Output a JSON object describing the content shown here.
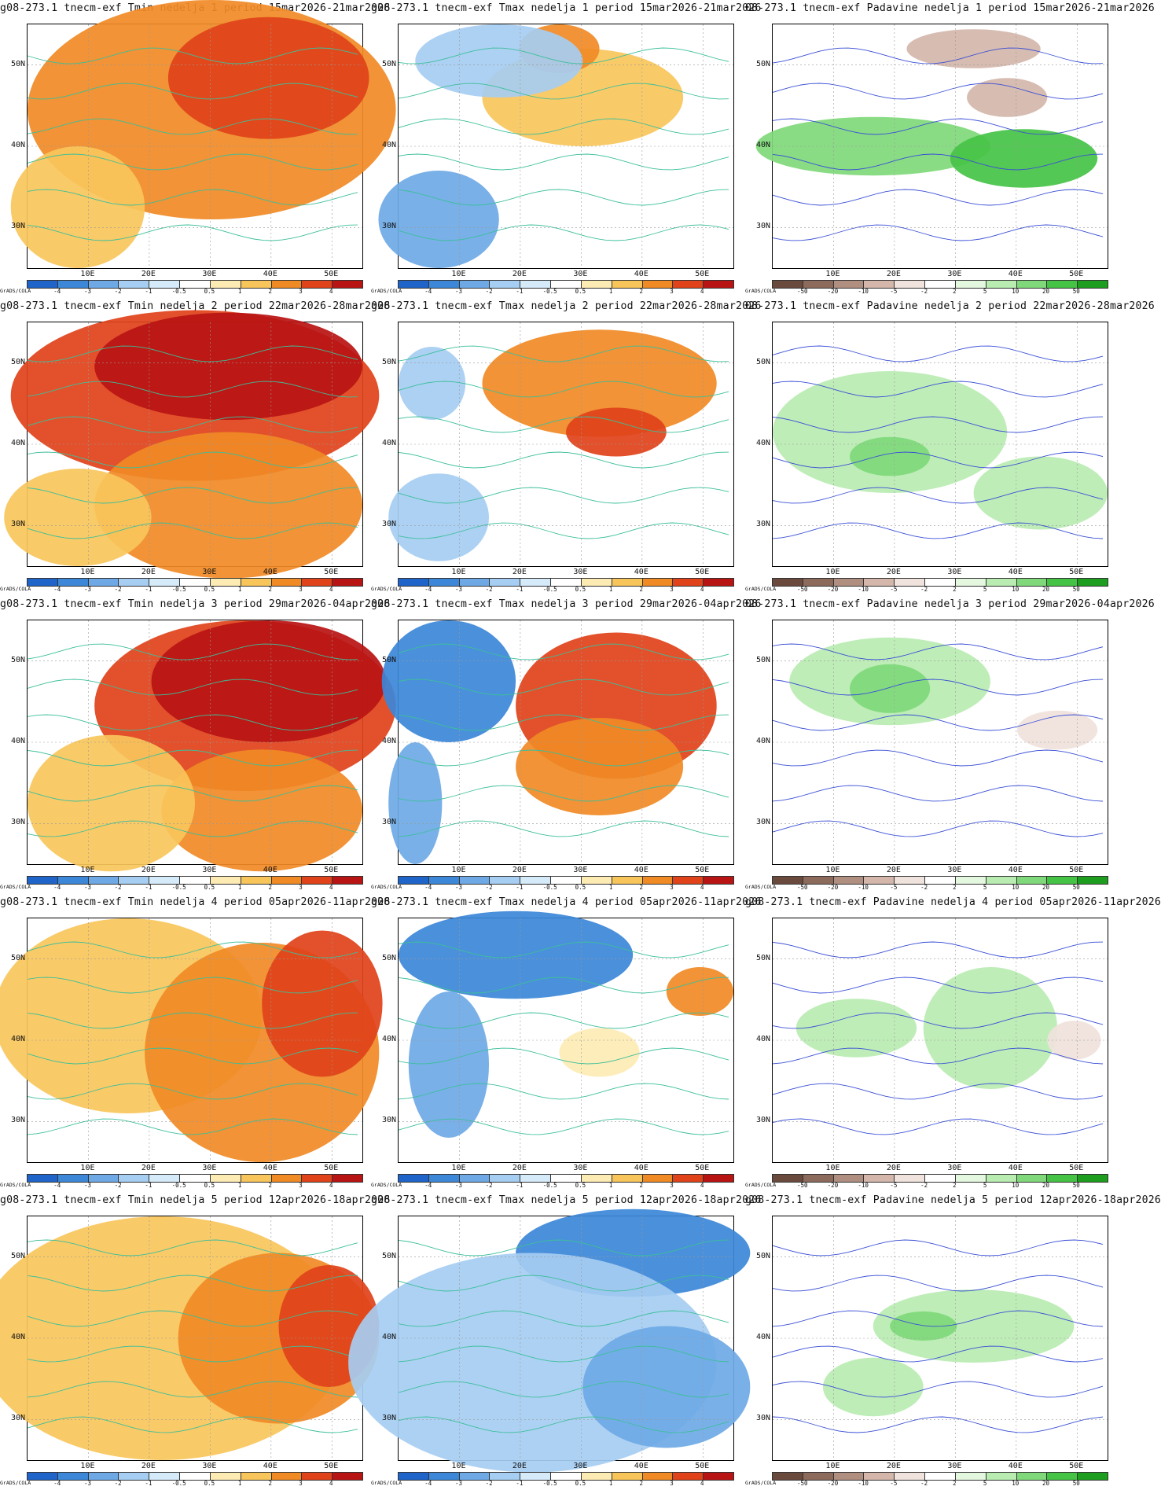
{
  "map_extent": {
    "lon_min": 0,
    "lon_max": 55,
    "lat_min": 25,
    "lat_max": 55
  },
  "lon_labels": [
    "10E",
    "20E",
    "30E",
    "40E",
    "50E"
  ],
  "lat_labels": [
    "50N",
    "40N",
    "30N"
  ],
  "grads_credit": "GrADS/COLA",
  "legends": {
    "temp": {
      "ticks": [
        "-4",
        "-3",
        "-2",
        "-1",
        "-0.5",
        "0.5",
        "1",
        "2",
        "3",
        "4"
      ],
      "colors": [
        "#1f64c8",
        "#3c87d8",
        "#6ea9e6",
        "#a6cdf2",
        "#d6ebfa",
        "#ffffff",
        "#fdebb4",
        "#f8c55b",
        "#f08a25",
        "#e0421a",
        "#b81414"
      ]
    },
    "precip": {
      "ticks": [
        "-50",
        "-20",
        "-10",
        "-5",
        "-2",
        "2",
        "5",
        "10",
        "20",
        "50"
      ],
      "colors": [
        "#6b4a3e",
        "#8c6a5c",
        "#b08e80",
        "#d4b6aa",
        "#f0e2dc",
        "#ffffff",
        "#e4f7df",
        "#b8ecb1",
        "#7fd97a",
        "#45c345",
        "#1e9e1e"
      ]
    }
  },
  "weeks": [
    {
      "week": "1",
      "period": "15mar2026-21mar2026",
      "panels": [
        {
          "title": "g08-273.1 tnecm-exf Tmin nedelja 1 period 15mar2026-21mar2026",
          "variable": "Tmin"
        },
        {
          "title": "g08-273.1 tnecm-exf Tmax nedelja 1 period 15mar2026-21mar2026",
          "variable": "Tmax"
        },
        {
          "title": "08-273.1 tnecm-exf Padavine nedelja 1 period 15mar2026-21mar2026",
          "variable": "Padavine"
        }
      ]
    },
    {
      "week": "2",
      "period": "22mar2026-28mar2026",
      "panels": [
        {
          "title": "g08-273.1 tnecm-exf Tmin nedelja 2 period 22mar2026-28mar2026",
          "variable": "Tmin"
        },
        {
          "title": "g08-273.1 tnecm-exf Tmax nedelja 2 period 22mar2026-28mar2026",
          "variable": "Tmax"
        },
        {
          "title": "08-273.1 tnecm-exf Padavine nedelja 2 period 22mar2026-28mar2026",
          "variable": "Padavine"
        }
      ]
    },
    {
      "week": "3",
      "period": "29mar2026-04apr2026",
      "panels": [
        {
          "title": "g08-273.1 tnecm-exf Tmin nedelja 3 period 29mar2026-04apr2026",
          "variable": "Tmin"
        },
        {
          "title": "g08-273.1 tnecm-exf Tmax nedelja 3 period 29mar2026-04apr2026",
          "variable": "Tmax"
        },
        {
          "title": "08-273.1 tnecm-exf Padavine nedelja 3 period 29mar2026-04apr2026",
          "variable": "Padavine"
        }
      ]
    },
    {
      "week": "4",
      "period": "05apr2026-11apr2026",
      "panels": [
        {
          "title": "g08-273.1 tnecm-exf Tmin nedelja 4 period 05apr2026-11apr2026",
          "variable": "Tmin"
        },
        {
          "title": "g08-273.1 tnecm-exf Tmax nedelja 4 period 05apr2026-11apr2026",
          "variable": "Tmax"
        },
        {
          "title": "g08-273.1 tnecm-exf Padavine nedelja 4 period 05apr2026-11apr2026",
          "variable": "Padavine"
        }
      ]
    },
    {
      "week": "5",
      "period": "12apr2026-18apr2026",
      "panels": [
        {
          "title": "g08-273.1 tnecm-exf Tmin nedelja 5 period 12apr2026-18apr2026",
          "variable": "Tmin"
        },
        {
          "title": "g08-273.1 tnecm-exf Tmax nedelja 5 period 12apr2026-18apr2026",
          "variable": "Tmax"
        },
        {
          "title": "g08-273.1 tnecm-exf Padavine nedelja 5 period 12apr2026-18apr2026",
          "variable": "Padavine"
        }
      ]
    }
  ]
}
